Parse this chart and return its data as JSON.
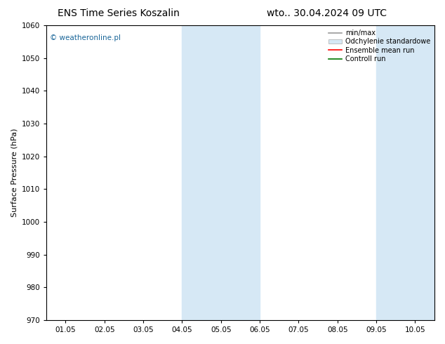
{
  "title_left": "ENS Time Series Koszalin",
  "title_right": "wto.. 30.04.2024 09 UTC",
  "ylabel": "Surface Pressure (hPa)",
  "watermark": "© weatheronline.pl",
  "ylim": [
    970,
    1060
  ],
  "yticks": [
    970,
    980,
    990,
    1000,
    1010,
    1020,
    1030,
    1040,
    1050,
    1060
  ],
  "xtick_labels": [
    "01.05",
    "02.05",
    "03.05",
    "04.05",
    "05.05",
    "06.05",
    "07.05",
    "08.05",
    "09.05",
    "10.05"
  ],
  "shaded_bands": [
    {
      "xstart": 3.0,
      "xend": 5.0
    },
    {
      "xstart": 8.0,
      "xend": 9.5
    }
  ],
  "shade_color": "#d6e8f5",
  "legend_entries": [
    {
      "label": "min/max",
      "color": "#999999",
      "lw": 1.2,
      "style": "-"
    },
    {
      "label": "Odchylenie standardowe",
      "color": "#d0e4f5",
      "lw": 8,
      "style": "-"
    },
    {
      "label": "Ensemble mean run",
      "color": "#ff0000",
      "lw": 1.2,
      "style": "-"
    },
    {
      "label": "Controll run",
      "color": "#007700",
      "lw": 1.2,
      "style": "-"
    }
  ],
  "background_color": "#ffffff",
  "title_fontsize": 10,
  "tick_fontsize": 7.5,
  "ylabel_fontsize": 8,
  "watermark_color": "#1a6699",
  "border_color": "#000000"
}
